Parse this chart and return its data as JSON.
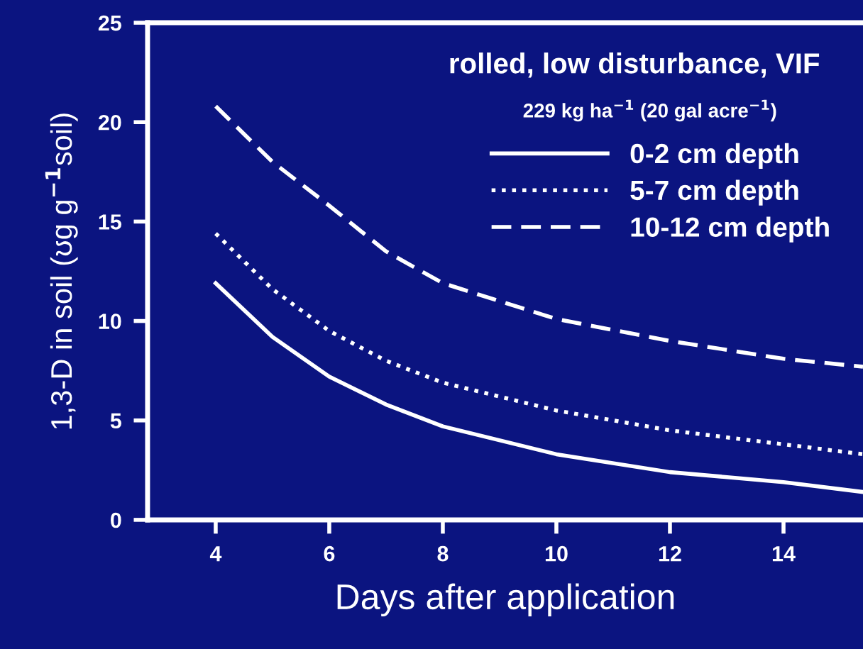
{
  "chart_data": {
    "type": "line",
    "title": "rolled, low disturbance, VIF",
    "subtitle": "229 kg ha$^{−1}$ (20 gal acre$^{−1}$)",
    "xlabel": "Days after application",
    "ylabel": "1,3-D in soil (ʊg g$^{−1}$soil)",
    "xlim": [
      2.8,
      15.4
    ],
    "xticks": [
      4,
      6,
      8,
      10,
      12,
      14
    ],
    "ylim": [
      0,
      25
    ],
    "yticks": [
      0,
      5,
      10,
      15,
      20,
      25
    ],
    "grid": false,
    "legend": "top right",
    "marker": "none",
    "x": [
      4,
      5,
      6,
      7,
      8,
      10,
      12,
      14,
      15.4
    ],
    "series": [
      {
        "name": "0-2 cm depth",
        "color": "#ffffff",
        "line_style": "solid",
        "values": [
          11.9,
          9.2,
          7.2,
          5.8,
          4.7,
          3.3,
          2.4,
          1.9,
          1.4
        ]
      },
      {
        "name": "5-7 cm depth",
        "color": "#ffffff",
        "line_style": "dotted",
        "values": [
          14.4,
          11.6,
          9.5,
          8.0,
          6.9,
          5.5,
          4.5,
          3.8,
          3.3
        ]
      },
      {
        "name": "10-12 cm depth",
        "color": "#ffffff",
        "line_style": "dashed",
        "values": [
          20.8,
          18.0,
          15.8,
          13.5,
          11.9,
          10.1,
          9.0,
          8.1,
          7.7
        ]
      }
    ]
  }
}
